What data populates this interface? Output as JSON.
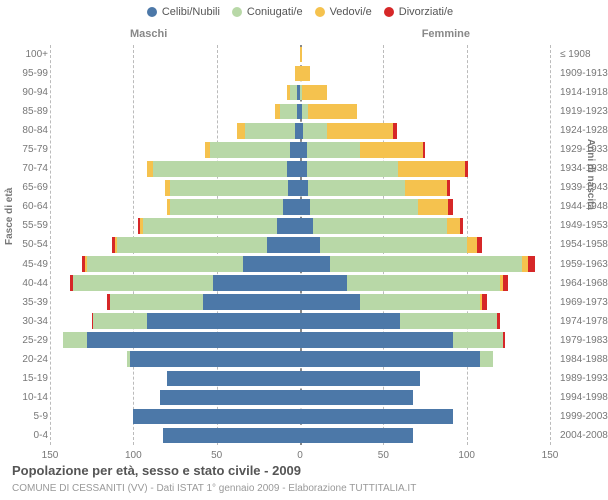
{
  "chart": {
    "type": "population-pyramid",
    "legend": [
      {
        "label": "Celibi/Nubili",
        "color": "#4c78a8"
      },
      {
        "label": "Coniugati/e",
        "color": "#b8d8a7"
      },
      {
        "label": "Vedovi/e",
        "color": "#f5c24e"
      },
      {
        "label": "Divorziati/e",
        "color": "#d62728"
      }
    ],
    "side_labels": {
      "left": "Maschi",
      "right": "Femmine"
    },
    "y_axis_left_title": "Fasce di età",
    "y_axis_right_title": "Anni di nascita",
    "x": {
      "min": -150,
      "max": 150,
      "ticks": [
        -150,
        -100,
        -50,
        0,
        50,
        100,
        150
      ]
    },
    "bar_gap_ratio": 0.18,
    "background_color": "#ffffff",
    "grid_color": "#bbbbbb",
    "center_color": "#888888",
    "rows": [
      {
        "age": "100+",
        "birth": "≤ 1908",
        "m": [
          0,
          0,
          0,
          0
        ],
        "f": [
          0,
          0,
          1,
          0
        ]
      },
      {
        "age": "95-99",
        "birth": "1909-1913",
        "m": [
          0,
          0,
          3,
          0
        ],
        "f": [
          0,
          0,
          6,
          0
        ]
      },
      {
        "age": "90-94",
        "birth": "1914-1918",
        "m": [
          2,
          4,
          2,
          0
        ],
        "f": [
          0,
          1,
          15,
          0
        ]
      },
      {
        "age": "85-89",
        "birth": "1919-1923",
        "m": [
          2,
          10,
          3,
          0
        ],
        "f": [
          1,
          4,
          29,
          0
        ]
      },
      {
        "age": "80-84",
        "birth": "1924-1928",
        "m": [
          3,
          30,
          5,
          0
        ],
        "f": [
          2,
          14,
          40,
          2
        ]
      },
      {
        "age": "75-79",
        "birth": "1929-1933",
        "m": [
          6,
          48,
          3,
          0
        ],
        "f": [
          4,
          32,
          38,
          1
        ]
      },
      {
        "age": "70-74",
        "birth": "1934-1938",
        "m": [
          8,
          80,
          4,
          0
        ],
        "f": [
          4,
          55,
          40,
          2
        ]
      },
      {
        "age": "65-69",
        "birth": "1939-1943",
        "m": [
          7,
          71,
          3,
          0
        ],
        "f": [
          5,
          58,
          25,
          2
        ]
      },
      {
        "age": "60-64",
        "birth": "1944-1948",
        "m": [
          10,
          68,
          2,
          0
        ],
        "f": [
          6,
          65,
          18,
          3
        ]
      },
      {
        "age": "55-59",
        "birth": "1949-1953",
        "m": [
          14,
          80,
          2,
          1
        ],
        "f": [
          8,
          80,
          8,
          2
        ]
      },
      {
        "age": "50-54",
        "birth": "1954-1958",
        "m": [
          20,
          90,
          1,
          2
        ],
        "f": [
          12,
          88,
          6,
          3
        ]
      },
      {
        "age": "45-49",
        "birth": "1959-1963",
        "m": [
          34,
          94,
          1,
          2
        ],
        "f": [
          18,
          115,
          4,
          4
        ]
      },
      {
        "age": "40-44",
        "birth": "1964-1968",
        "m": [
          52,
          84,
          0,
          2
        ],
        "f": [
          28,
          92,
          2,
          3
        ]
      },
      {
        "age": "35-39",
        "birth": "1969-1973",
        "m": [
          58,
          56,
          0,
          2
        ],
        "f": [
          36,
          72,
          1,
          3
        ]
      },
      {
        "age": "30-34",
        "birth": "1974-1978",
        "m": [
          92,
          32,
          0,
          1
        ],
        "f": [
          60,
          58,
          0,
          2
        ]
      },
      {
        "age": "25-29",
        "birth": "1979-1983",
        "m": [
          128,
          14,
          0,
          0
        ],
        "f": [
          92,
          30,
          0,
          1
        ]
      },
      {
        "age": "20-24",
        "birth": "1984-1988",
        "m": [
          102,
          2,
          0,
          0
        ],
        "f": [
          108,
          8,
          0,
          0
        ]
      },
      {
        "age": "15-19",
        "birth": "1989-1993",
        "m": [
          80,
          0,
          0,
          0
        ],
        "f": [
          72,
          0,
          0,
          0
        ]
      },
      {
        "age": "10-14",
        "birth": "1994-1998",
        "m": [
          84,
          0,
          0,
          0
        ],
        "f": [
          68,
          0,
          0,
          0
        ]
      },
      {
        "age": "5-9",
        "birth": "1999-2003",
        "m": [
          100,
          0,
          0,
          0
        ],
        "f": [
          92,
          0,
          0,
          0
        ]
      },
      {
        "age": "0-4",
        "birth": "2004-2008",
        "m": [
          82,
          0,
          0,
          0
        ],
        "f": [
          68,
          0,
          0,
          0
        ]
      }
    ],
    "footer_title": "Popolazione per età, sesso e stato civile - 2009",
    "footer_sub": "COMUNE DI CESSANITI (VV) - Dati ISTAT 1° gennaio 2009 - Elaborazione TUTTITALIA.IT"
  }
}
